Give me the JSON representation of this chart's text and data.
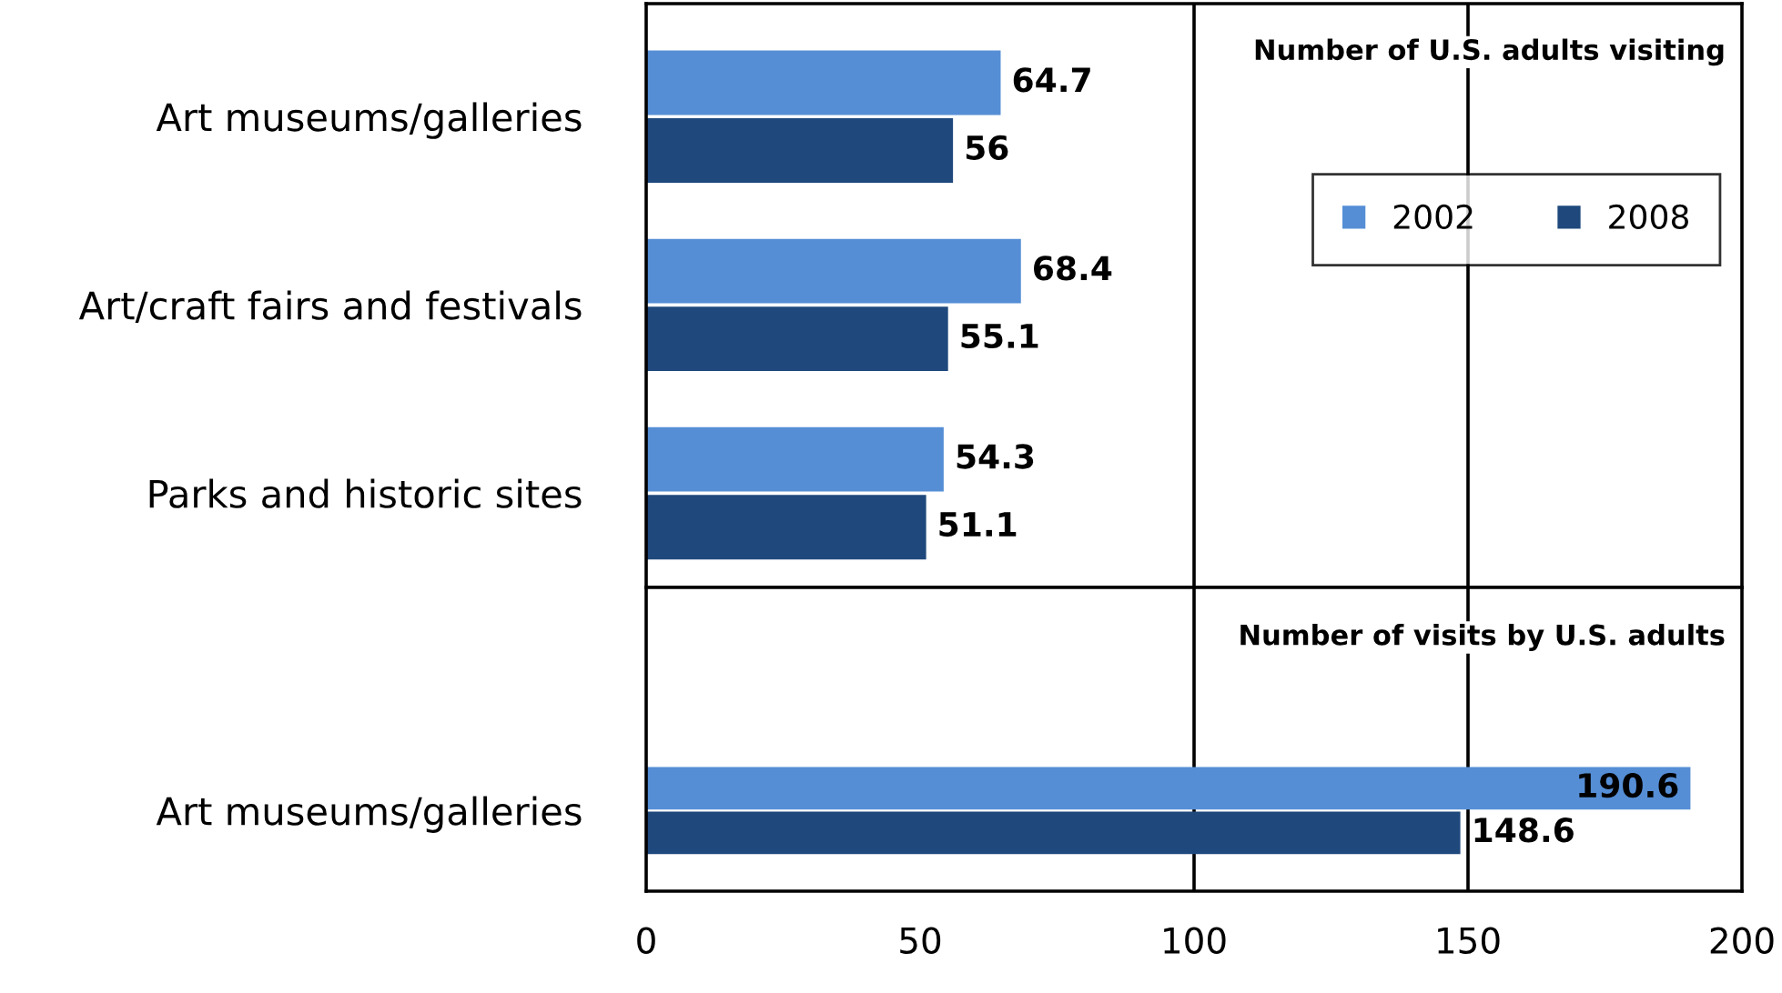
{
  "chart_data": [
    {
      "type": "bar",
      "orientation": "horizontal",
      "title": "Number of U.S. adults visiting",
      "categories": [
        "Art museums/galleries",
        "Art/craft fairs and festivals",
        "Parks and historic sites"
      ],
      "series": [
        {
          "name": "2002",
          "color": "#558ed5",
          "values": [
            64.7,
            68.4,
            54.3
          ]
        },
        {
          "name": "2008",
          "color": "#1f497d",
          "values": [
            56,
            55.1,
            51.1
          ]
        }
      ],
      "xlim": [
        0,
        200
      ],
      "xticks": [
        0,
        50,
        100,
        150,
        200
      ],
      "tick_labels": "y",
      "data_labels": true,
      "legend": "right",
      "ref_lines": [
        {
          "axis": "x",
          "value": 100
        },
        {
          "axis": "x",
          "value": 150
        }
      ]
    },
    {
      "type": "bar",
      "orientation": "horizontal",
      "title": "Number of visits by U.S. adults",
      "categories": [
        "Art museums/galleries"
      ],
      "series": [
        {
          "color": "#558ed5",
          "values": [
            190.6
          ]
        },
        {
          "color": "#1f497d",
          "values": [
            148.6
          ]
        }
      ],
      "xlim": [
        0,
        200
      ],
      "xticks": [
        0,
        50,
        100,
        150,
        200
      ],
      "data_labels": true,
      "ref_lines": [
        {
          "axis": "x",
          "value": 100
        },
        {
          "axis": "x",
          "value": 150
        }
      ]
    }
  ]
}
